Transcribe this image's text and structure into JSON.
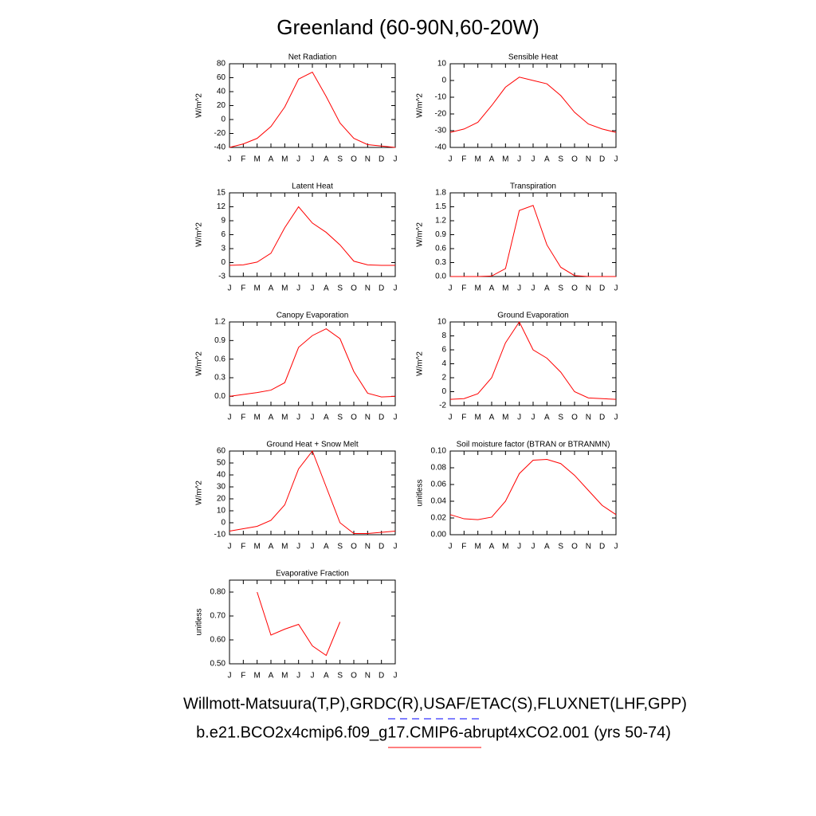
{
  "title": "Greenland (60-90N,60-20W)",
  "legend": [
    {
      "label": "Willmott-Matsuura(T,P),GRDC(R),USAF/ETAC(S),FLUXNET(LHF,GPP)",
      "color": "#0000ff",
      "style": "dashed"
    },
    {
      "label": "b.e21.BCO2x4cmip6.f09_g17.CMIP6-abrupt4xCO2.001 (yrs 50-74)",
      "color": "#ff0000",
      "style": "solid"
    }
  ],
  "chart_data": [
    {
      "type": "line",
      "title": "Net Radiation",
      "ylabel": "W/m^2",
      "color": "#ff0000",
      "categories": [
        "J",
        "F",
        "M",
        "A",
        "M",
        "J",
        "J",
        "A",
        "S",
        "O",
        "N",
        "D",
        "J"
      ],
      "values": [
        -40,
        -35,
        -27,
        -10,
        18,
        58,
        68,
        33,
        -5,
        -27,
        -36,
        -38,
        -40
      ],
      "ylim": [
        -40,
        80
      ],
      "yticks": [
        -40,
        -20,
        0,
        20,
        40,
        60,
        80
      ]
    },
    {
      "type": "line",
      "title": "Sensible Heat",
      "ylabel": "W/m^2",
      "color": "#ff0000",
      "categories": [
        "J",
        "F",
        "M",
        "A",
        "M",
        "J",
        "J",
        "A",
        "S",
        "O",
        "N",
        "D",
        "J"
      ],
      "values": [
        -31,
        -29,
        -25,
        -15,
        -4,
        2,
        0,
        -2,
        -9,
        -19,
        -26,
        -29,
        -31
      ],
      "ylim": [
        -40,
        10
      ],
      "yticks": [
        -40,
        -30,
        -20,
        -10,
        0,
        10
      ]
    },
    {
      "type": "line",
      "title": "Latent Heat",
      "ylabel": "W/m^2",
      "color": "#ff0000",
      "categories": [
        "J",
        "F",
        "M",
        "A",
        "M",
        "J",
        "J",
        "A",
        "S",
        "O",
        "N",
        "D",
        "J"
      ],
      "values": [
        -0.6,
        -0.5,
        0.1,
        2,
        7.5,
        12,
        8.5,
        6.5,
        3.8,
        0.3,
        -0.5,
        -0.6,
        -0.6
      ],
      "ylim": [
        -3,
        15
      ],
      "yticks": [
        -3,
        0,
        3,
        6,
        9,
        12,
        15
      ]
    },
    {
      "type": "line",
      "title": "Transpiration",
      "ylabel": "W/m^2",
      "color": "#ff0000",
      "categories": [
        "J",
        "F",
        "M",
        "A",
        "M",
        "J",
        "J",
        "A",
        "S",
        "O",
        "N",
        "D",
        "J"
      ],
      "values": [
        0,
        0,
        0,
        0.01,
        0.17,
        1.42,
        1.53,
        0.68,
        0.2,
        0.02,
        0,
        0,
        0
      ],
      "ylim": [
        0,
        1.8
      ],
      "yticks": [
        {
          "value": 0,
          "label": "0.0"
        },
        0.3,
        0.6,
        0.9,
        1.2,
        1.5,
        1.8
      ]
    },
    {
      "type": "line",
      "title": "Canopy Evaporation",
      "ylabel": "W/m^2",
      "color": "#ff0000",
      "categories": [
        "J",
        "F",
        "M",
        "A",
        "M",
        "J",
        "J",
        "A",
        "S",
        "O",
        "N",
        "D",
        "J"
      ],
      "values": [
        0,
        0.03,
        0.06,
        0.1,
        0.22,
        0.79,
        0.98,
        1.09,
        0.93,
        0.4,
        0.05,
        -0.01,
        0
      ],
      "ylim": [
        -0.15,
        1.2
      ],
      "yticks": [
        {
          "value": 0,
          "label": "0.0"
        },
        0.3,
        0.6,
        0.9,
        1.2
      ]
    },
    {
      "type": "line",
      "title": "Ground Evaporation",
      "ylabel": "W/m^2",
      "color": "#ff0000",
      "categories": [
        "J",
        "F",
        "M",
        "A",
        "M",
        "J",
        "J",
        "A",
        "S",
        "O",
        "N",
        "D",
        "J"
      ],
      "values": [
        -1.1,
        -1,
        -0.3,
        2,
        7,
        10,
        6,
        4.8,
        2.8,
        0,
        -0.9,
        -1,
        -1.1
      ],
      "ylim": [
        -2,
        10
      ],
      "yticks": [
        -2,
        0,
        2,
        4,
        6,
        8,
        10
      ]
    },
    {
      "type": "line",
      "title": "Ground Heat + Snow Melt",
      "ylabel": "W/m^2",
      "color": "#ff0000",
      "categories": [
        "J",
        "F",
        "M",
        "A",
        "M",
        "J",
        "J",
        "A",
        "S",
        "O",
        "N",
        "D",
        "J"
      ],
      "values": [
        -7,
        -5,
        -3,
        2,
        15,
        45,
        60,
        30,
        0,
        -9,
        -9,
        -8,
        -7
      ],
      "ylim": [
        -10,
        60
      ],
      "yticks": [
        -10,
        0,
        10,
        20,
        30,
        40,
        50,
        60
      ]
    },
    {
      "type": "line",
      "title": "Soil moisture factor (BTRAN or BTRANMN)",
      "ylabel": "unitless",
      "color": "#ff0000",
      "categories": [
        "J",
        "F",
        "M",
        "A",
        "M",
        "J",
        "J",
        "A",
        "S",
        "O",
        "N",
        "D",
        "J"
      ],
      "values": [
        0.024,
        0.019,
        0.018,
        0.021,
        0.04,
        0.073,
        0.089,
        0.09,
        0.085,
        0.071,
        0.053,
        0.035,
        0.024
      ],
      "ylim": [
        0,
        0.1
      ],
      "yticks": [
        {
          "value": 0,
          "label": "0.00"
        },
        0.02,
        0.04,
        0.06,
        0.08,
        {
          "value": 0.1,
          "label": "0.10"
        }
      ]
    },
    {
      "type": "line",
      "title": "Evaporative Fraction",
      "ylabel": "unitless",
      "color": "#ff0000",
      "categories": [
        "J",
        "F",
        "M",
        "A",
        "M",
        "J",
        "J",
        "A",
        "S",
        "O",
        "N",
        "D",
        "J"
      ],
      "values": [
        null,
        null,
        0.8,
        0.62,
        0.645,
        0.665,
        0.575,
        0.535,
        0.675,
        null,
        null,
        null,
        null
      ],
      "ylim": [
        0.5,
        0.85
      ],
      "yticks": [
        {
          "value": 0.5,
          "label": "0.50"
        },
        {
          "value": 0.6,
          "label": "0.60"
        },
        {
          "value": 0.7,
          "label": "0.70"
        },
        {
          "value": 0.8,
          "label": "0.80"
        }
      ]
    }
  ]
}
